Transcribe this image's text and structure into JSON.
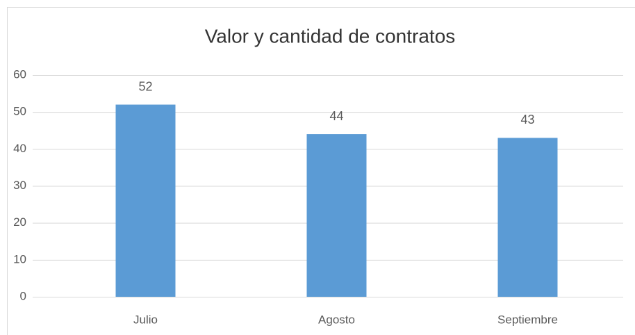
{
  "chart_data": {
    "type": "bar",
    "title": "Valor y cantidad de contratos",
    "categories": [
      "Julio",
      "Agosto",
      "Septiembre"
    ],
    "values": [
      52,
      44,
      43
    ],
    "color": "#5b9bd5",
    "ylim": [
      0,
      60
    ],
    "yticks": [
      0,
      10,
      20,
      30,
      40,
      50,
      60
    ],
    "grid": true,
    "data_labels": true
  }
}
